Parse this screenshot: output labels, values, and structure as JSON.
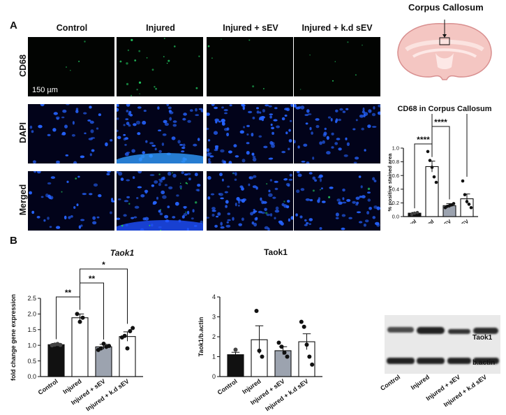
{
  "panel_a": {
    "letter": "A",
    "columns": [
      "Control",
      "Injured",
      "Injured + sEV",
      "Injured + k.d sEV"
    ],
    "rows": [
      "CD68",
      "DAPI",
      "Merged"
    ],
    "scale_bar": "150 µm",
    "brain_title": "Corpus Callosum",
    "colors": {
      "cd68": "#22c55e",
      "dapi": "#2563ff",
      "brain": "#f4c6c2",
      "brain_edge": "#d88f8f"
    }
  },
  "panel_b": {
    "letter": "B"
  },
  "chart_data": [
    {
      "type": "bar",
      "title": "CD68 in Corpus Callosum",
      "ylabel": "% positive stained area",
      "categories": [
        "Control",
        "Injured",
        "Injured + sEV",
        "Injured + k.d sEV"
      ],
      "values": [
        0.05,
        0.73,
        0.16,
        0.26
      ],
      "errors": [
        0.01,
        0.08,
        0.03,
        0.07
      ],
      "points": [
        [
          0.03,
          0.05,
          0.06
        ],
        [
          0.95,
          0.82,
          0.72,
          0.58,
          0.5
        ],
        [
          0.13,
          0.15,
          0.16,
          0.17,
          0.19
        ],
        [
          0.52,
          0.32,
          0.22,
          0.18,
          0.13
        ]
      ],
      "ylim": [
        0,
        1.0
      ],
      "yticks": [
        "0.0",
        "0.2",
        "0.4",
        "0.6",
        "0.8",
        "1.0"
      ],
      "bar_colors": [
        "#111111",
        "#ffffff",
        "#9ca3af",
        "#ffffff"
      ],
      "significance": [
        {
          "from": 0,
          "to": 1,
          "label": "****"
        },
        {
          "from": 1,
          "to": 2,
          "label": "****"
        },
        {
          "from": 1,
          "to": 3,
          "label": "***"
        }
      ]
    },
    {
      "type": "bar",
      "title": "Taok1",
      "ylabel": "fold change gene expression",
      "categories": [
        "Control",
        "Injured",
        "Injured + sEV",
        "Injured + k.d sEV"
      ],
      "values": [
        1.02,
        1.88,
        0.95,
        1.28
      ],
      "errors": [
        0.04,
        0.12,
        0.08,
        0.15
      ],
      "points": [
        [
          1.0,
          1.02,
          1.04,
          1.01
        ],
        [
          2.0,
          1.75,
          1.88
        ],
        [
          0.85,
          0.9,
          1.05,
          0.95,
          0.98
        ],
        [
          1.25,
          1.3,
          0.9,
          1.45,
          1.55
        ]
      ],
      "ylim": [
        0,
        2.5
      ],
      "yticks": [
        "0.0",
        "0.5",
        "1.0",
        "1.5",
        "2.0",
        "2.5"
      ],
      "bar_colors": [
        "#111111",
        "#ffffff",
        "#9ca3af",
        "#ffffff"
      ],
      "significance": [
        {
          "from": 0,
          "to": 1,
          "label": "**"
        },
        {
          "from": 1,
          "to": 2,
          "label": "**"
        },
        {
          "from": 1,
          "to": 3,
          "label": "*"
        }
      ]
    },
    {
      "type": "bar",
      "title": "Taok1",
      "ylabel": "Taok1/b.actin",
      "categories": [
        "Control",
        "Injured",
        "Injured + sEV",
        "Injured + k.d sEV"
      ],
      "values": [
        1.1,
        1.85,
        1.3,
        1.75
      ],
      "errors": [
        0.12,
        0.7,
        0.2,
        0.4
      ],
      "points": [
        [
          1.35
        ],
        [
          3.3,
          1.3,
          1.0
        ],
        [
          1.7,
          1.5,
          1.2,
          1.0
        ],
        [
          2.75,
          2.5,
          1.6,
          1.0,
          0.6
        ]
      ],
      "ylim": [
        0,
        4
      ],
      "yticks": [
        "0",
        "1",
        "2",
        "3",
        "4"
      ],
      "bar_colors": [
        "#111111",
        "#ffffff",
        "#9ca3af",
        "#ffffff"
      ],
      "significance": []
    }
  ],
  "blot": {
    "labels": [
      "Taok1",
      "b.actin"
    ],
    "lanes": [
      "Control",
      "Injured",
      "Injured + sEV",
      "Injured + k.d sEV"
    ]
  }
}
